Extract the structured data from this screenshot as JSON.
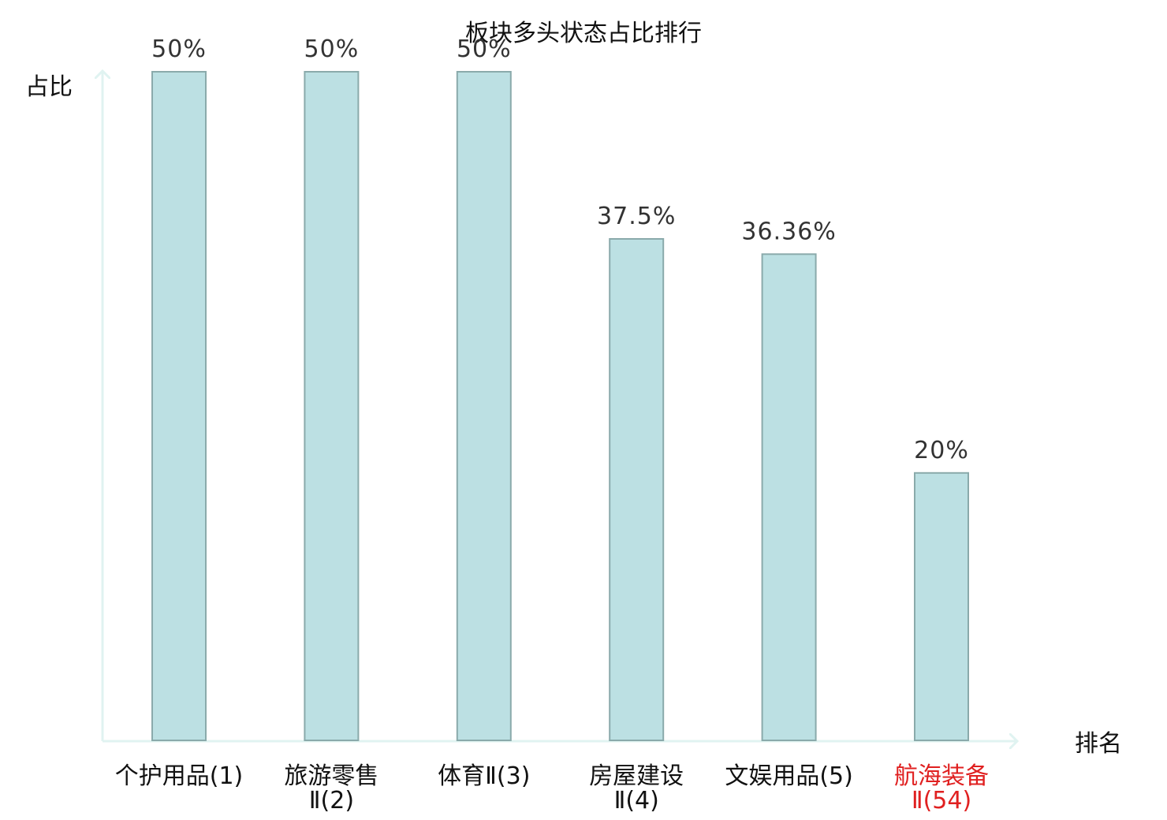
{
  "chart_data": {
    "type": "bar",
    "title": "板块多头状态占比排行",
    "ylabel": "占比",
    "xlabel": "排名",
    "categories": [
      {
        "lines": [
          "个护用品(1)"
        ],
        "highlight": false
      },
      {
        "lines": [
          "旅游零售",
          "Ⅱ(2)"
        ],
        "highlight": false
      },
      {
        "lines": [
          "体育Ⅱ(3)"
        ],
        "highlight": false
      },
      {
        "lines": [
          "房屋建设",
          "Ⅱ(4)"
        ],
        "highlight": false
      },
      {
        "lines": [
          "文娱用品(5)"
        ],
        "highlight": false
      },
      {
        "lines": [
          "航海装备",
          "Ⅱ(54)"
        ],
        "highlight": true
      }
    ],
    "values": [
      50,
      50,
      50,
      37.5,
      36.36,
      20
    ],
    "value_labels": [
      "50%",
      "50%",
      "50%",
      "37.5%",
      "36.36%",
      "20%"
    ],
    "ylim": [
      0,
      50
    ],
    "grid": false,
    "colors": {
      "bar_fill": "#bce0e3",
      "bar_stroke": "#8aaaab",
      "axis": "#e0f3f1",
      "label": "#111111",
      "highlight": "#e02020"
    }
  }
}
